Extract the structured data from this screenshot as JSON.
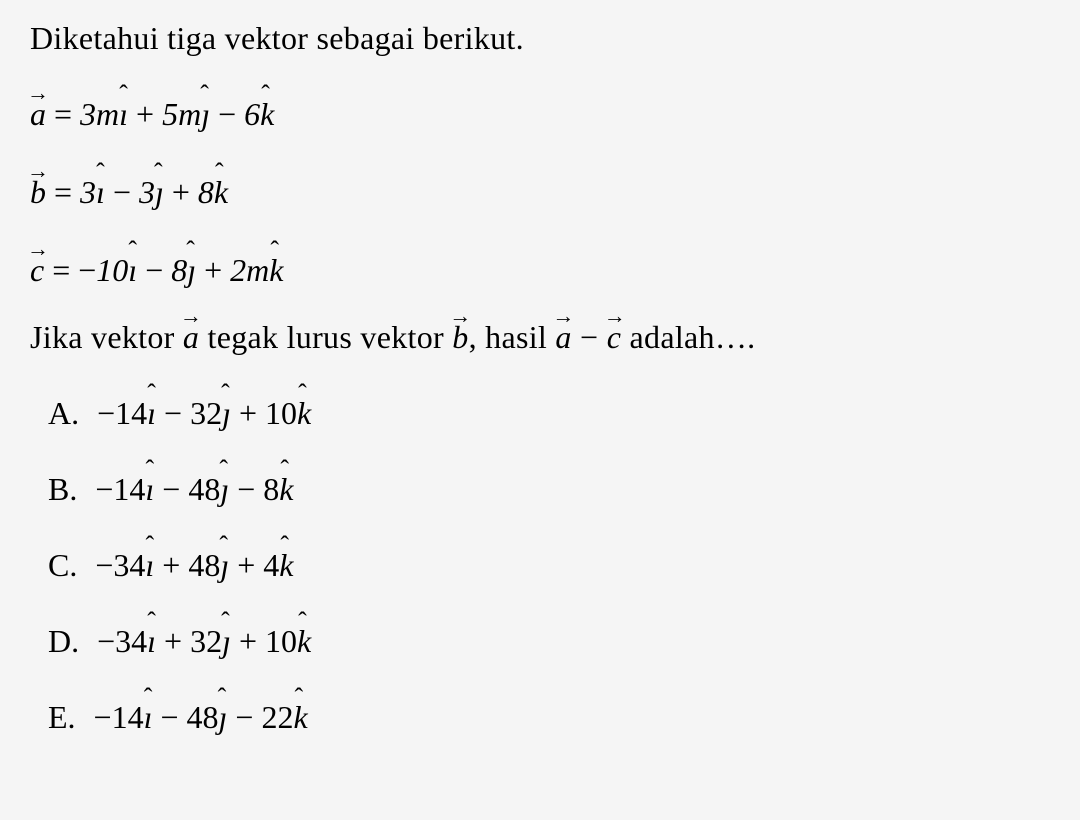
{
  "problem": {
    "intro": "Diketahui tiga vektor sebagai berikut.",
    "question_part1": "Jika vektor ",
    "question_part2": " tegak lurus vektor ",
    "question_part3": ", hasil ",
    "question_part4": " adalah….",
    "vectors": {
      "a": {
        "symbol": "a",
        "coeff_i": "3m",
        "coeff_j": "5m",
        "coeff_k": "6",
        "op_ij": "+",
        "op_jk": "−"
      },
      "b": {
        "symbol": "b",
        "coeff_i": "3",
        "coeff_j": "3",
        "coeff_k": "8",
        "op_ij": "−",
        "op_jk": "+"
      },
      "c": {
        "symbol": "c",
        "coeff_i": "10",
        "coeff_j": "8",
        "coeff_k": "2m",
        "sign_i": "−",
        "op_ij": "−",
        "op_jk": "+"
      }
    },
    "expr_vec1": "a",
    "expr_op": "−",
    "expr_vec2": "c",
    "options": {
      "A": {
        "label": "A.",
        "sign_i": "−",
        "coeff_i": "14",
        "op_ij": "−",
        "coeff_j": "32",
        "op_jk": "+",
        "coeff_k": "10"
      },
      "B": {
        "label": "B.",
        "sign_i": "−",
        "coeff_i": "14",
        "op_ij": "−",
        "coeff_j": "48",
        "op_jk": "−",
        "coeff_k": "8"
      },
      "C": {
        "label": "C.",
        "sign_i": "−",
        "coeff_i": "34",
        "op_ij": "+",
        "coeff_j": "48",
        "op_jk": "+",
        "coeff_k": "4"
      },
      "D": {
        "label": "D.",
        "sign_i": "−",
        "coeff_i": "34",
        "op_ij": "+",
        "coeff_j": "32",
        "op_jk": "+",
        "coeff_k": "10"
      },
      "E": {
        "label": "E.",
        "sign_i": "−",
        "coeff_i": "14",
        "op_ij": "−",
        "coeff_j": "48",
        "op_jk": "−",
        "coeff_k": "22"
      }
    }
  },
  "styling": {
    "font_size": 32,
    "text_color": "#000000",
    "background_color": "#f5f5f5",
    "font_family": "Times New Roman"
  }
}
